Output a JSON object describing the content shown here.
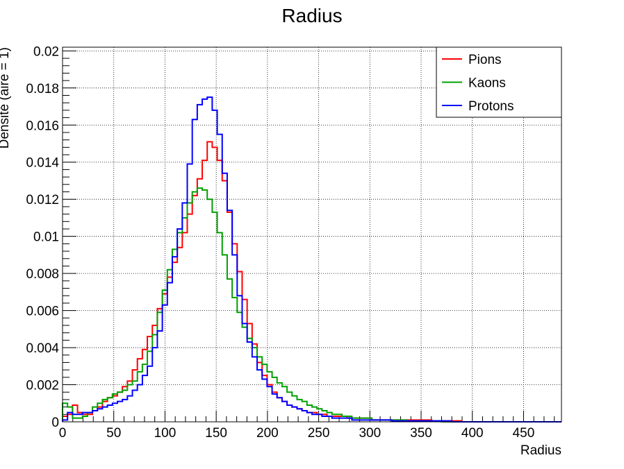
{
  "chart_data": {
    "type": "line",
    "title": "Radius",
    "xlabel": "Radius",
    "ylabel": "Densité (aire = 1)",
    "xlim": [
      0,
      487
    ],
    "ylim": [
      0,
      0.0202
    ],
    "xticks": [
      0,
      50,
      100,
      150,
      200,
      250,
      300,
      350,
      400,
      450
    ],
    "yticks": [
      0,
      0.002,
      0.004,
      0.006,
      0.008,
      0.01,
      0.012,
      0.014,
      0.016,
      0.018,
      0.02
    ],
    "xtick_labels": [
      "0",
      "50",
      "100",
      "150",
      "200",
      "250",
      "300",
      "350",
      "400",
      "450"
    ],
    "ytick_labels": [
      "0",
      "0.002",
      "0.004",
      "0.006",
      "0.008",
      "0.01",
      "0.012",
      "0.014",
      "0.016",
      "0.018",
      "0.02"
    ],
    "grid": true,
    "legend_position": "top-right",
    "bin_width": 4.87,
    "series": [
      {
        "name": "Pions",
        "color": "#ff0000",
        "values": [
          0.0003,
          0.0004,
          0.0009,
          0.0005,
          0.0004,
          0.0004,
          0.0006,
          0.0008,
          0.0011,
          0.0013,
          0.0014,
          0.0016,
          0.0019,
          0.0022,
          0.0028,
          0.0034,
          0.0039,
          0.0046,
          0.0052,
          0.0061,
          0.0069,
          0.0078,
          0.0086,
          0.0094,
          0.0102,
          0.0112,
          0.0122,
          0.0131,
          0.0141,
          0.0151,
          0.0148,
          0.0141,
          0.013,
          0.0113,
          0.0096,
          0.0081,
          0.0066,
          0.0053,
          0.0042,
          0.0032,
          0.0025,
          0.002,
          0.0016,
          0.0013,
          0.0011,
          0.0009,
          0.0008,
          0.0007,
          0.0006,
          0.0005,
          0.0005,
          0.0004,
          0.0004,
          0.0003,
          0.0003,
          0.0003,
          0.0003,
          0.0002,
          0.0002,
          0.0002,
          0.0002,
          0.0002,
          0.0001,
          0.0001,
          0.0001,
          0.0001,
          0.0001,
          0.0001,
          0.0001,
          0.0001,
          0.0001,
          0.0001,
          0.0001,
          0.0001,
          5e-05,
          5e-05,
          5e-05,
          5e-05,
          5e-05,
          5e-05,
          0,
          0,
          0,
          0,
          0,
          0,
          0,
          0,
          0,
          0,
          0,
          0,
          0,
          0,
          0,
          0,
          0,
          0,
          0,
          0
        ]
      },
      {
        "name": "Kaons",
        "color": "#00a000",
        "values": [
          0.001,
          0.0008,
          0.0002,
          0.0002,
          0.0003,
          0.0005,
          0.0008,
          0.001,
          0.0012,
          0.0013,
          0.0015,
          0.0016,
          0.0017,
          0.002,
          0.0022,
          0.0027,
          0.0031,
          0.0038,
          0.0047,
          0.0059,
          0.0071,
          0.0082,
          0.0093,
          0.0102,
          0.011,
          0.0118,
          0.0124,
          0.0126,
          0.0125,
          0.012,
          0.0113,
          0.0102,
          0.009,
          0.0077,
          0.0067,
          0.0059,
          0.0051,
          0.0045,
          0.004,
          0.0035,
          0.0031,
          0.0027,
          0.0024,
          0.0021,
          0.0019,
          0.0016,
          0.0014,
          0.0012,
          0.0011,
          0.0009,
          0.0008,
          0.0007,
          0.0006,
          0.0005,
          0.0004,
          0.0004,
          0.0003,
          0.0003,
          0.0002,
          0.0002,
          0.0002,
          0.0002,
          0.0001,
          0.0001,
          0.0001,
          0.0001,
          0.0001,
          0.0001,
          0.0001,
          5e-05,
          5e-05,
          5e-05,
          5e-05,
          5e-05,
          5e-05,
          5e-05,
          0,
          0,
          0,
          0,
          0,
          0,
          0,
          0,
          0,
          0,
          0,
          0,
          0,
          0,
          0,
          0,
          0,
          0,
          0,
          0,
          0,
          0,
          0,
          0
        ]
      },
      {
        "name": "Protons",
        "color": "#0000ff",
        "values": [
          0.0001,
          0.0005,
          0.0004,
          0.0004,
          0.0005,
          0.0005,
          0.0006,
          0.0007,
          0.0008,
          0.0009,
          0.001,
          0.0011,
          0.0012,
          0.0014,
          0.0017,
          0.002,
          0.0025,
          0.003,
          0.004,
          0.0049,
          0.0063,
          0.0075,
          0.0089,
          0.0104,
          0.0118,
          0.0139,
          0.0163,
          0.0171,
          0.0174,
          0.0175,
          0.0168,
          0.0155,
          0.0134,
          0.0114,
          0.009,
          0.0068,
          0.0053,
          0.0043,
          0.0035,
          0.0028,
          0.0023,
          0.0019,
          0.0015,
          0.0013,
          0.0011,
          0.0009,
          0.0008,
          0.0007,
          0.0006,
          0.0005,
          0.0004,
          0.0004,
          0.0003,
          0.0003,
          0.0002,
          0.0002,
          0.0002,
          0.0002,
          0.0001,
          0.0001,
          0.0001,
          0.0001,
          0.0001,
          0.0001,
          0.0001,
          0.0001,
          5e-05,
          5e-05,
          5e-05,
          5e-05,
          5e-05,
          5e-05,
          5e-05,
          5e-05,
          5e-05,
          5e-05,
          5e-05,
          5e-05,
          0,
          0,
          0,
          0,
          0,
          0,
          0,
          0,
          0,
          0,
          0,
          0,
          0,
          0,
          0,
          0,
          0,
          0,
          0,
          0,
          0,
          0
        ]
      }
    ]
  }
}
